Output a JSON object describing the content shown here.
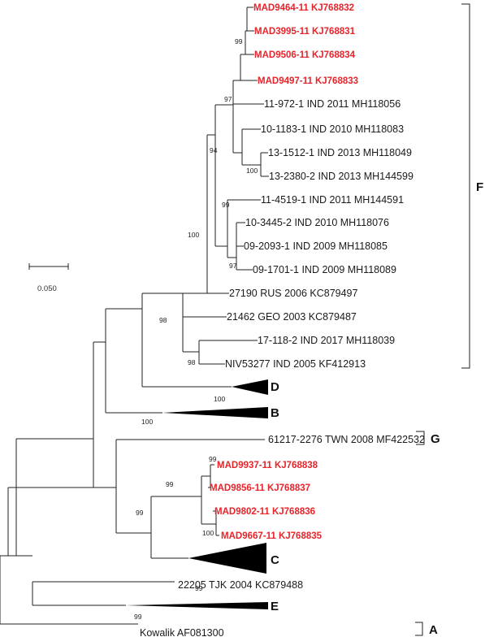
{
  "colors": {
    "branch": "#222222",
    "highlight_taxa": "#e8232a",
    "text": "#1a1a1a",
    "background": "#ffffff"
  },
  "scale_bar": {
    "label": "0.050"
  },
  "taxa": {
    "mad9464": "MAD9464-11 KJ768832",
    "mad3995": "MAD3995-11 KJ768831",
    "mad9506": "MAD9506-11 KJ768834",
    "mad9497": "MAD9497-11 KJ768833",
    "t11_972": "11-972-1 IND 2011 MH118056",
    "t10_1183": "10-1183-1 IND 2010 MH118083",
    "t13_1512": "13-1512-1 IND 2013 MH118049",
    "t13_2380": "13-2380-2 IND 2013 MH144599",
    "t11_4519": "11-4519-1 IND 2011 MH144591",
    "t10_3445": "10-3445-2 IND 2010 MH118076",
    "t09_2093": "09-2093-1 IND 2009 MH118085",
    "t09_1701": "09-1701-1 IND 2009 MH118089",
    "t27190": "27190 RUS 2006 KC879497",
    "t21462": "21462 GEO 2003 KC879487",
    "t17_118": "17-118-2 IND 2017 MH118039",
    "niv53277": "NIV53277 IND 2005 KF412913",
    "t61217": "61217-2276 TWN 2008 MF422532",
    "mad9937": "MAD9937-11 KJ768838",
    "mad9856": "MAD9856-11 KJ768837",
    "mad9802": "MAD9802-11 KJ768836",
    "mad9667": "MAD9667-11 KJ768835",
    "t22205": "22205 TJK 2004 KC879488",
    "kowalik": "Kowalik AF081300"
  },
  "clades": {
    "F": "F",
    "D": "D",
    "B": "B",
    "G": "G",
    "C": "C",
    "E": "E",
    "A": "A"
  },
  "bootstrap": {
    "n_mad": "99",
    "n_972": "97",
    "n_13": "100",
    "n_94": "94",
    "n_99b": "99",
    "n_97b": "97",
    "n_100a": "100",
    "n_98a": "98",
    "n_98b": "98",
    "n_B": "100",
    "n_G": "100",
    "n_mad2": "99",
    "n_99c": "99",
    "n_mad3": "100",
    "n_99d": "99",
    "n_C": "99",
    "n_E": "99"
  }
}
